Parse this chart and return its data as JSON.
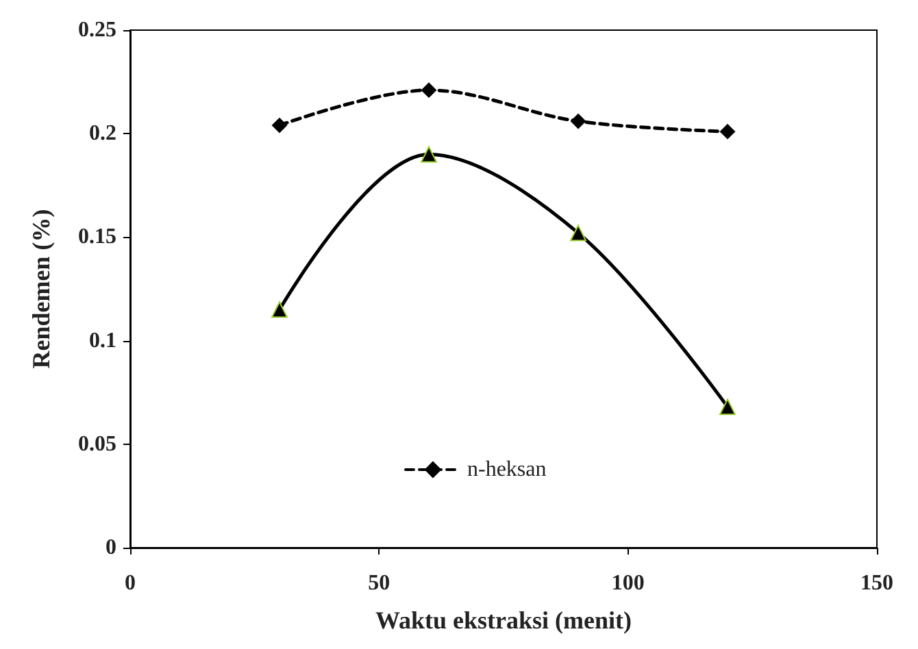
{
  "chart_data": {
    "type": "line",
    "xlabel": "Waktu ekstraksi (menit)",
    "ylabel": "Rendemen (%)",
    "x": [
      30,
      60,
      90,
      120
    ],
    "series": [
      {
        "name": "n-heksan",
        "color": "#000000",
        "values": [
          0.204,
          0.221,
          0.206,
          0.201
        ],
        "marker": "diamond",
        "line_style": "dashed"
      },
      {
        "color": "#000000",
        "values": [
          0.115,
          0.19,
          0.152,
          0.068
        ],
        "marker": "triangle",
        "line_style": "solid"
      }
    ],
    "xlim": [
      0,
      150
    ],
    "xticks": [
      0,
      50,
      100,
      150
    ],
    "ylim": [
      0,
      0.25
    ],
    "yticks": [
      0,
      0.05,
      0.1,
      0.15,
      0.2,
      0.25
    ],
    "grid": false,
    "legend": "bottom"
  }
}
